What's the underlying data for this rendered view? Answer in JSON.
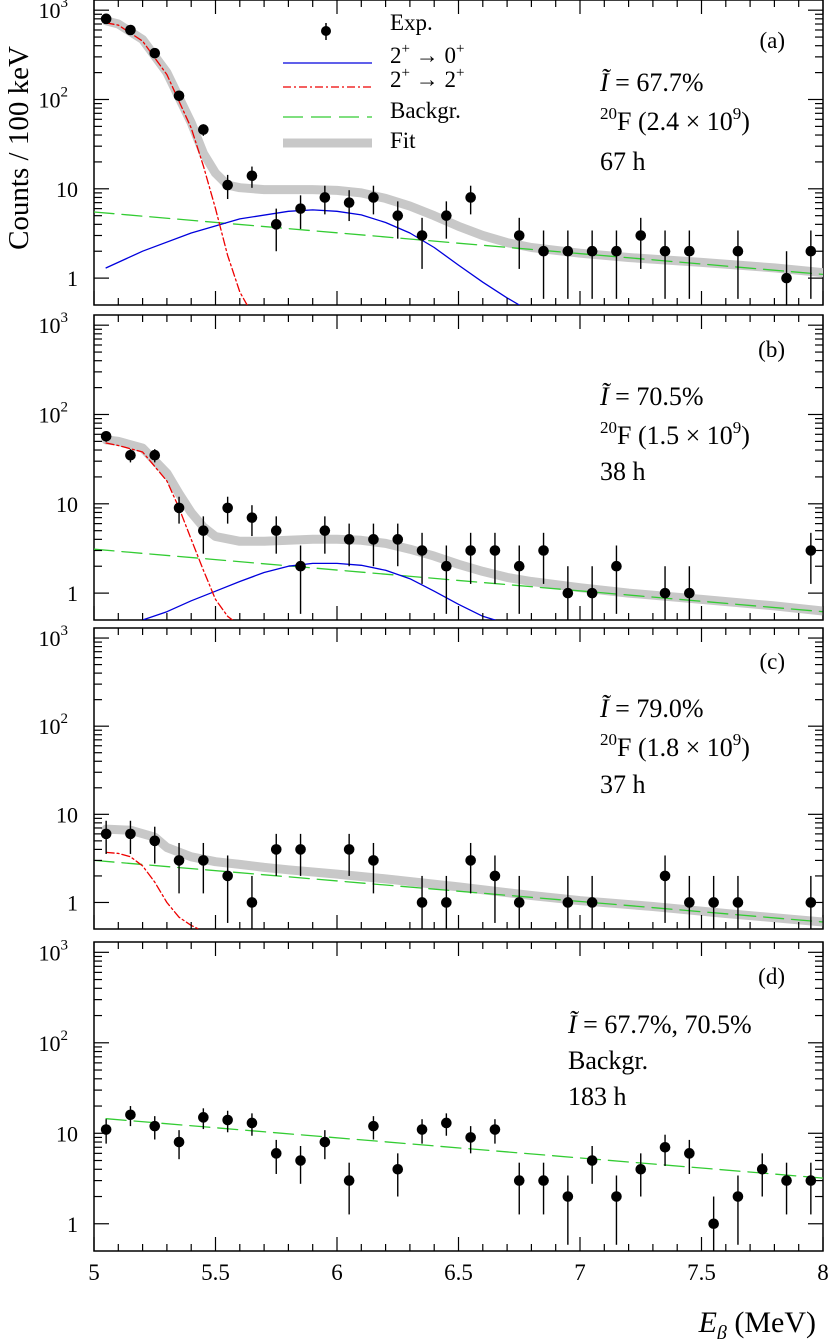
{
  "figure": {
    "ylabel": "Counts / 100 keV",
    "xlabel_symbol": "E",
    "xlabel_sub": "β",
    "xlabel_unit": " (MeV)",
    "xticks": [
      "5",
      "5.5",
      "6",
      "6.5",
      "7",
      "7.5",
      "8"
    ],
    "ytick_labels": {
      "1": "1",
      "10": "10",
      "100_base": "10",
      "100_exp": "2",
      "1000_base": "10",
      "1000_exp": "3"
    },
    "legend": {
      "exp": "Exp.",
      "trans20_base1": "2",
      "trans20_sup1": "+",
      "trans20_arrow": " → ",
      "trans20_base2": "0",
      "trans20_sup2": "+",
      "trans22_base1": "2",
      "trans22_sup1": "+",
      "trans22_arrow": " → ",
      "trans22_base2": "2",
      "trans22_sup2": "+",
      "backgr": "Backgr.",
      "fit": "Fit"
    },
    "colors": {
      "exp": "#000000",
      "trans20": "#0000dd",
      "trans22": "#ee0000",
      "backgr": "#33cc33",
      "fit": "#c8c8c8"
    }
  },
  "chart_data": [
    {
      "type": "scatter",
      "panel": "(a)",
      "intensity_symbol": "Ĩ",
      "intensity": " = 67.7%",
      "source_sup": "20",
      "source_main": "F (2.4 × 10",
      "source_exp": "9",
      "source_close": ")",
      "duration": "67 h",
      "xlim": [
        5,
        8
      ],
      "ylim": [
        0.5,
        1300
      ],
      "yscale": "log",
      "x": [
        5.05,
        5.15,
        5.25,
        5.35,
        5.45,
        5.55,
        5.65,
        5.75,
        5.85,
        5.95,
        6.05,
        6.15,
        6.25,
        6.35,
        6.45,
        6.55,
        6.75,
        6.85,
        6.95,
        7.05,
        7.15,
        7.25,
        7.35,
        7.45,
        7.65,
        7.85,
        7.95
      ],
      "y": [
        800,
        600,
        330,
        110,
        46,
        11,
        14,
        4,
        6,
        8,
        7,
        8,
        5,
        3,
        5,
        8,
        3,
        2,
        2,
        2,
        2,
        3,
        2,
        2,
        2,
        1,
        2
      ],
      "series": [
        {
          "name": "2+ → 0+",
          "style": "solid",
          "x": [
            5.05,
            5.2,
            5.4,
            5.6,
            5.8,
            5.9,
            6.0,
            6.1,
            6.2,
            6.3,
            6.4,
            6.5,
            6.6,
            6.7,
            6.75
          ],
          "y": [
            1.3,
            2.0,
            3.2,
            4.6,
            5.6,
            5.8,
            5.6,
            5.1,
            4.2,
            3.2,
            2.2,
            1.4,
            0.9,
            0.6,
            0.5
          ]
        },
        {
          "name": "2+ → 2+",
          "style": "dashdot",
          "x": [
            5.05,
            5.1,
            5.2,
            5.3,
            5.4,
            5.45,
            5.5,
            5.55,
            5.6,
            5.63
          ],
          "y": [
            720,
            680,
            450,
            190,
            48,
            18,
            6,
            1.8,
            0.7,
            0.5
          ]
        },
        {
          "name": "Backgr.",
          "style": "dashed",
          "x": [
            5.0,
            8.0
          ],
          "y": [
            5.5,
            1.1
          ]
        },
        {
          "name": "Fit",
          "style": "thick",
          "x": [
            5.05,
            5.1,
            5.2,
            5.3,
            5.4,
            5.45,
            5.5,
            5.55,
            5.6,
            5.7,
            5.8,
            5.9,
            6.0,
            6.1,
            6.2,
            6.3,
            6.4,
            6.5,
            6.6,
            6.7,
            6.8,
            7.0,
            7.2,
            7.5,
            7.8,
            8.0
          ],
          "y": [
            760,
            700,
            470,
            200,
            55,
            25,
            15,
            11,
            10.3,
            9.8,
            9.8,
            9.8,
            9.6,
            9.0,
            7.8,
            6.4,
            5.0,
            3.8,
            3.0,
            2.5,
            2.2,
            1.9,
            1.7,
            1.5,
            1.3,
            1.15
          ]
        }
      ]
    },
    {
      "type": "scatter",
      "panel": "(b)",
      "intensity_symbol": "Ĩ",
      "intensity": " = 70.5%",
      "source_sup": "20",
      "source_main": "F (1.5 × 10",
      "source_exp": "9",
      "source_close": ")",
      "duration": "38 h",
      "xlim": [
        5,
        8
      ],
      "ylim": [
        0.5,
        1300
      ],
      "yscale": "log",
      "x": [
        5.05,
        5.15,
        5.25,
        5.35,
        5.45,
        5.55,
        5.65,
        5.75,
        5.85,
        5.95,
        6.05,
        6.15,
        6.25,
        6.35,
        6.45,
        6.55,
        6.65,
        6.75,
        6.85,
        6.95,
        7.05,
        7.15,
        7.35,
        7.45,
        7.95
      ],
      "y": [
        57,
        35,
        35,
        9,
        5,
        9,
        7,
        5,
        2,
        5,
        4,
        4,
        4,
        3,
        2,
        3,
        3,
        2,
        3,
        1,
        1,
        2,
        1,
        1,
        3
      ],
      "series": [
        {
          "name": "2+ → 0+",
          "style": "solid",
          "x": [
            5.2,
            5.3,
            5.4,
            5.5,
            5.6,
            5.7,
            5.8,
            5.9,
            6.0,
            6.1,
            6.2,
            6.3,
            6.4,
            6.5,
            6.6,
            6.65
          ],
          "y": [
            0.5,
            0.62,
            0.82,
            1.05,
            1.35,
            1.7,
            2.0,
            2.15,
            2.15,
            2.05,
            1.8,
            1.45,
            1.05,
            0.75,
            0.55,
            0.5
          ]
        },
        {
          "name": "2+ → 2+",
          "style": "dashdot",
          "x": [
            5.05,
            5.1,
            5.2,
            5.3,
            5.35,
            5.4,
            5.45,
            5.5,
            5.55,
            5.57
          ],
          "y": [
            48,
            45,
            38,
            18,
            9,
            4,
            1.8,
            0.85,
            0.55,
            0.5
          ]
        },
        {
          "name": "Backgr.",
          "style": "dashed",
          "x": [
            5.0,
            8.0
          ],
          "y": [
            3.1,
            0.62
          ]
        },
        {
          "name": "Fit",
          "style": "thick",
          "x": [
            5.05,
            5.1,
            5.2,
            5.3,
            5.35,
            5.4,
            5.45,
            5.5,
            5.6,
            5.7,
            5.8,
            5.9,
            6.0,
            6.1,
            6.2,
            6.3,
            6.4,
            6.5,
            6.6,
            6.7,
            6.8,
            7.0,
            7.2,
            7.5,
            7.8,
            8.0
          ],
          "y": [
            52,
            50,
            42,
            22,
            13,
            8,
            5.5,
            4.3,
            3.8,
            3.8,
            3.9,
            4.0,
            4.0,
            3.9,
            3.6,
            3.1,
            2.6,
            2.1,
            1.75,
            1.5,
            1.35,
            1.15,
            1.0,
            0.85,
            0.72,
            0.63
          ]
        }
      ]
    },
    {
      "type": "scatter",
      "panel": "(c)",
      "intensity_symbol": "Ĩ",
      "intensity": " = 79.0%",
      "source_sup": "20",
      "source_main": "F (1.8 × 10",
      "source_exp": "9",
      "source_close": ")",
      "duration": "37 h",
      "xlim": [
        5,
        8
      ],
      "ylim": [
        0.5,
        1300
      ],
      "yscale": "log",
      "x": [
        5.05,
        5.15,
        5.25,
        5.35,
        5.45,
        5.55,
        5.65,
        5.75,
        5.85,
        6.05,
        6.15,
        6.35,
        6.45,
        6.55,
        6.65,
        6.75,
        6.95,
        7.05,
        7.35,
        7.45,
        7.55,
        7.65,
        7.95
      ],
      "y": [
        6,
        6,
        5,
        3,
        3,
        2,
        1,
        4,
        4,
        4,
        3,
        1,
        1,
        3,
        2,
        1,
        1,
        1,
        2,
        1,
        1,
        1,
        1
      ],
      "series": [
        {
          "name": "2+ → 2+",
          "style": "dashdot",
          "x": [
            5.05,
            5.1,
            5.15,
            5.2,
            5.25,
            5.3,
            5.35,
            5.4,
            5.43
          ],
          "y": [
            3.7,
            3.6,
            3.3,
            2.6,
            1.7,
            1.0,
            0.68,
            0.55,
            0.5
          ]
        },
        {
          "name": "Backgr.",
          "style": "dashed",
          "x": [
            5.0,
            8.0
          ],
          "y": [
            3.0,
            0.6
          ]
        },
        {
          "name": "Fit",
          "style": "thick",
          "x": [
            5.05,
            5.15,
            5.25,
            5.3,
            5.4,
            5.5,
            5.6,
            5.7,
            5.8,
            6.0,
            6.2,
            6.5,
            6.8,
            7.0,
            7.3,
            7.6,
            8.0
          ],
          "y": [
            6.8,
            6.6,
            5.5,
            4.2,
            3.3,
            2.9,
            2.7,
            2.5,
            2.35,
            2.1,
            1.85,
            1.5,
            1.2,
            1.05,
            0.9,
            0.75,
            0.6
          ]
        }
      ]
    },
    {
      "type": "scatter",
      "panel": "(d)",
      "intensity_symbol": "Ĩ",
      "intensity": " = 67.7%, 70.5%",
      "label2": "Backgr.",
      "duration": "183 h",
      "xlim": [
        5,
        8
      ],
      "ylim": [
        0.5,
        1300
      ],
      "yscale": "log",
      "x": [
        5.05,
        5.15,
        5.25,
        5.35,
        5.45,
        5.55,
        5.65,
        5.75,
        5.85,
        5.95,
        6.05,
        6.15,
        6.25,
        6.35,
        6.45,
        6.55,
        6.65,
        6.75,
        6.85,
        6.95,
        7.05,
        7.15,
        7.25,
        7.35,
        7.45,
        7.55,
        7.65,
        7.75,
        7.85,
        7.95
      ],
      "y": [
        11,
        16,
        12,
        8,
        15,
        14,
        13,
        6,
        5,
        8,
        3,
        12,
        4,
        11,
        13,
        9,
        11,
        3,
        3,
        2,
        5,
        2,
        4,
        7,
        6,
        1,
        2,
        4,
        3,
        3
      ],
      "series": [
        {
          "name": "Backgr.",
          "style": "dashed",
          "x": [
            5.05,
            8.0
          ],
          "y": [
            14.5,
            3.2
          ]
        }
      ]
    }
  ]
}
